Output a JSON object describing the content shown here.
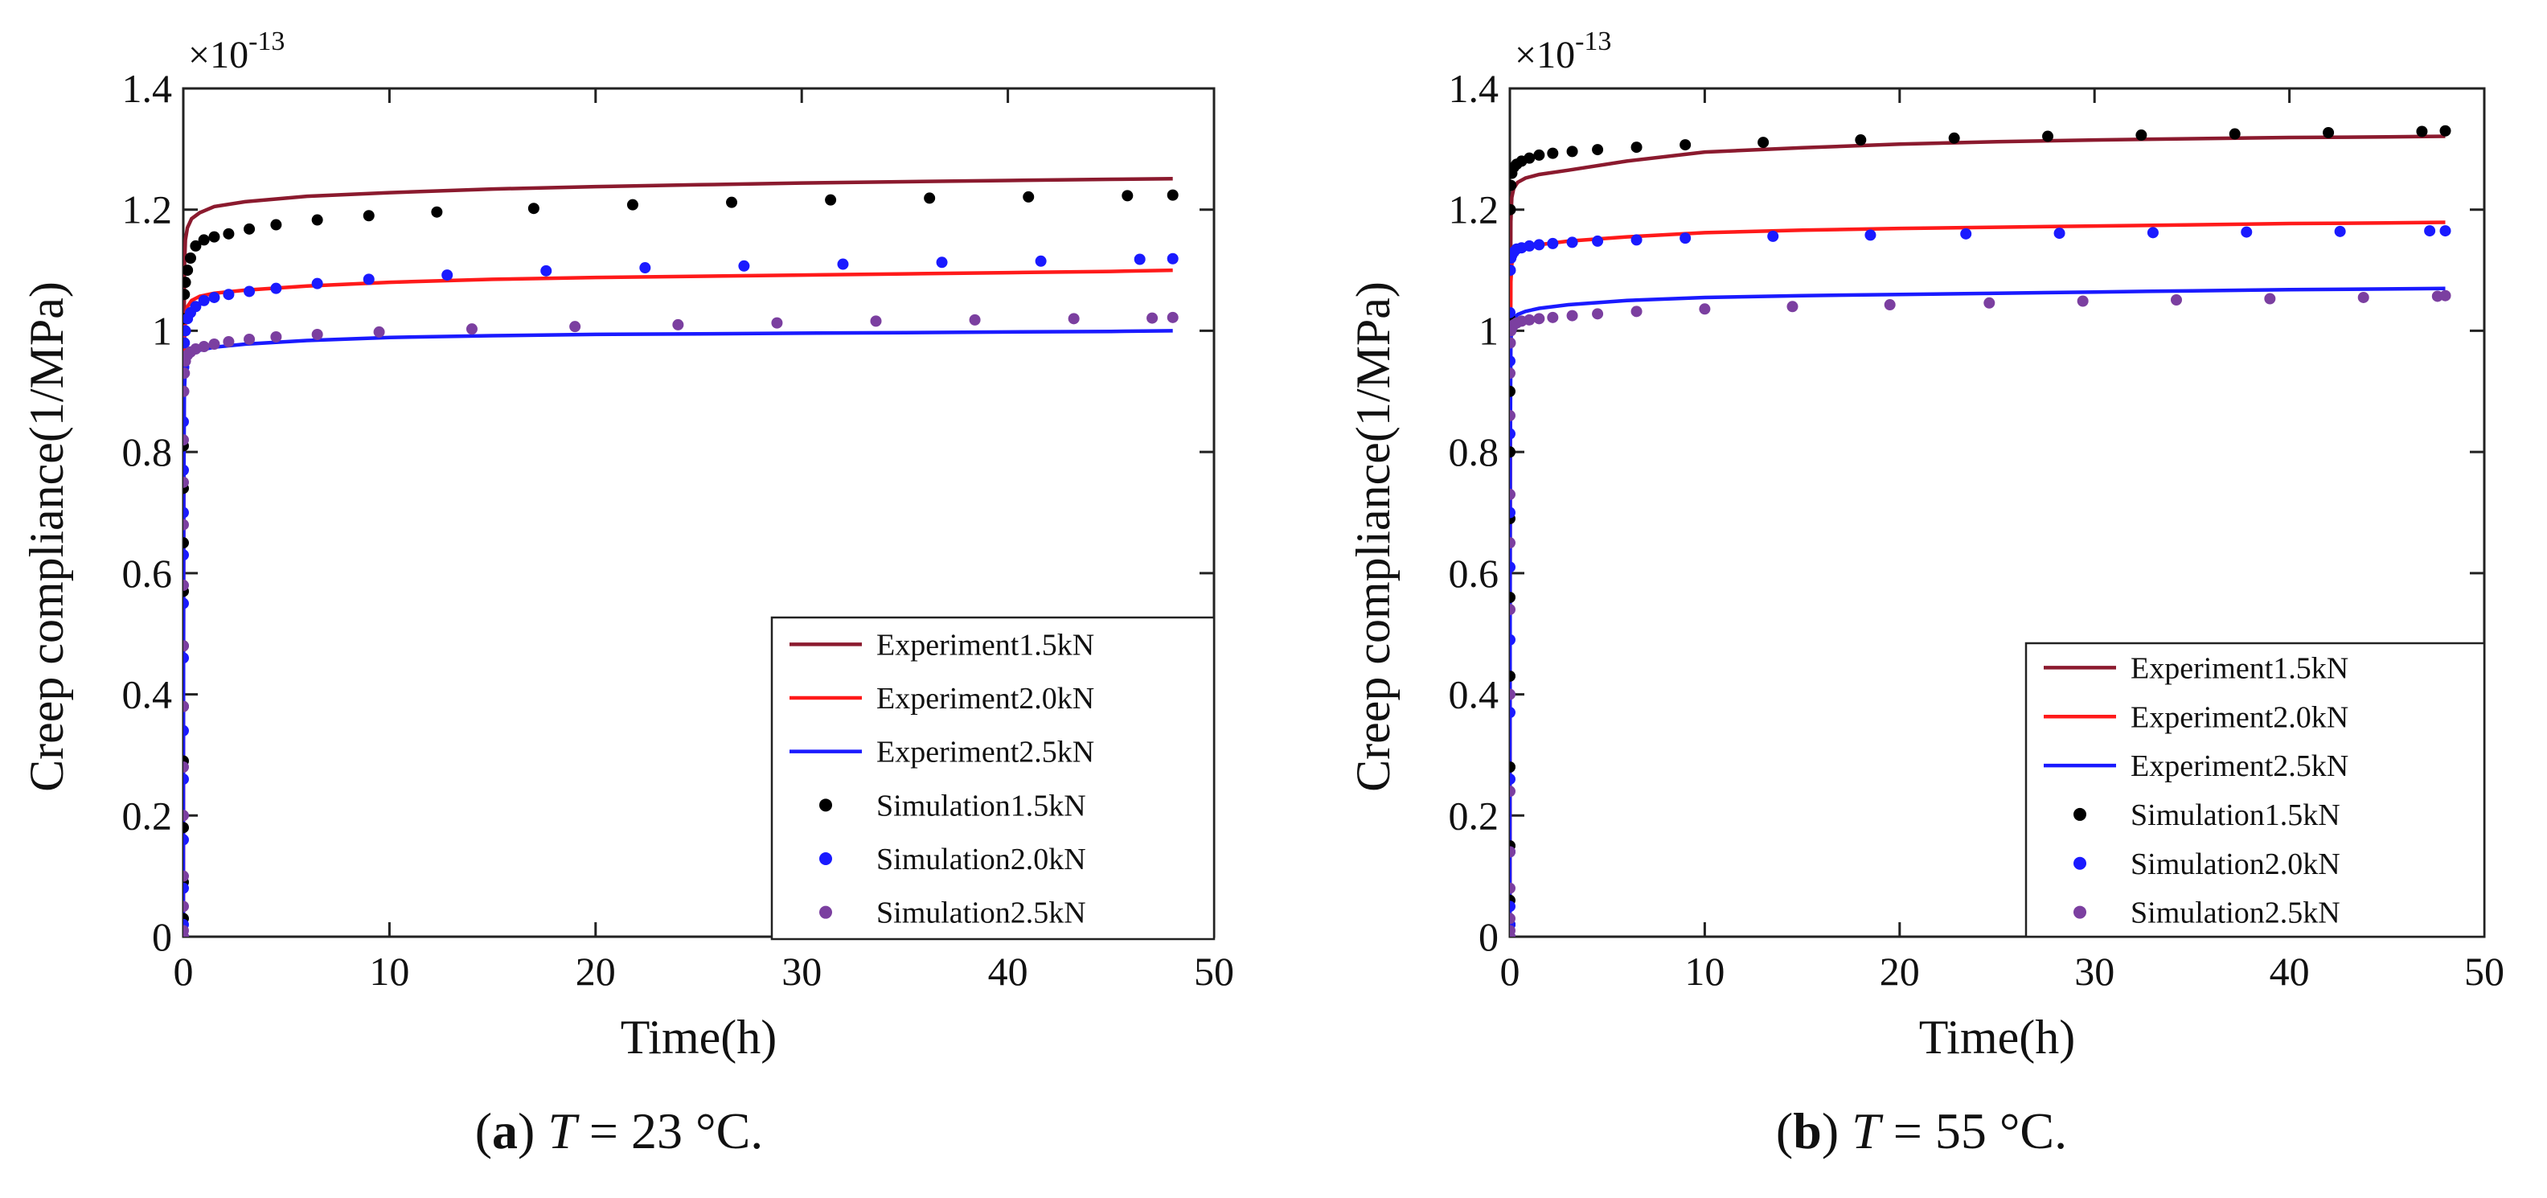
{
  "chart_data": [
    {
      "type": "line",
      "panel": "a",
      "caption": {
        "letter": "a",
        "variable": "T",
        "rest": " = 23 °C."
      },
      "xlabel": "Time(h)",
      "ylabel": "Creep compliance(1/MPa)",
      "multiplier": {
        "base": "×10",
        "exponent": "-13"
      },
      "xlim": [
        0,
        50
      ],
      "ylim": [
        0,
        1.4
      ],
      "xticks": [
        0,
        10,
        20,
        30,
        40,
        50
      ],
      "yticks": [
        0,
        0.2,
        0.4,
        0.6,
        0.8,
        1,
        1.2,
        1.4
      ],
      "legend_position": "lower-right",
      "series": [
        {
          "name": "Experiment1.5kN",
          "kind": "line",
          "color": "#8b1a2e",
          "x": [
            0,
            0.005,
            0.02,
            0.05,
            0.1,
            0.2,
            0.4,
            0.8,
            1.5,
            3,
            6,
            10,
            15,
            20,
            25,
            30,
            35,
            40,
            45,
            48
          ],
          "y": [
            0,
            0.3,
            0.8,
            1.1,
            1.15,
            1.17,
            1.185,
            1.195,
            1.205,
            1.213,
            1.222,
            1.228,
            1.234,
            1.238,
            1.241,
            1.244,
            1.246,
            1.248,
            1.25,
            1.251
          ]
        },
        {
          "name": "Experiment2.0kN",
          "kind": "line",
          "color": "#ff1a1a",
          "x": [
            0,
            0.005,
            0.02,
            0.05,
            0.1,
            0.2,
            0.4,
            0.8,
            1.5,
            3,
            6,
            10,
            15,
            20,
            25,
            30,
            35,
            40,
            45,
            48
          ],
          "y": [
            0,
            0.28,
            0.75,
            0.98,
            1.02,
            1.04,
            1.05,
            1.057,
            1.062,
            1.067,
            1.074,
            1.08,
            1.085,
            1.088,
            1.09,
            1.092,
            1.094,
            1.096,
            1.098,
            1.1
          ]
        },
        {
          "name": "Experiment2.5kN",
          "kind": "line",
          "color": "#1a1aff",
          "x": [
            0,
            0.005,
            0.02,
            0.05,
            0.1,
            0.2,
            0.4,
            0.8,
            1.5,
            3,
            6,
            10,
            15,
            20,
            25,
            30,
            35,
            40,
            45,
            48
          ],
          "y": [
            0,
            0.25,
            0.7,
            0.9,
            0.94,
            0.955,
            0.962,
            0.968,
            0.973,
            0.978,
            0.984,
            0.989,
            0.992,
            0.994,
            0.995,
            0.996,
            0.997,
            0.998,
            0.999,
            1.0
          ]
        },
        {
          "name": "Simulation1.5kN",
          "kind": "scatter",
          "color": "#000000",
          "x": [
            0,
            0,
            0,
            0,
            0,
            0,
            0,
            0,
            0,
            0,
            0,
            0,
            0.02,
            0.05,
            0.1,
            0.2,
            0.35,
            0.6,
            1,
            1.5,
            2.2,
            3.2,
            4.5,
            6.5,
            9,
            12.3,
            17,
            21.8,
            26.6,
            31.4,
            36.2,
            41,
            45.8,
            48
          ],
          "y": [
            0,
            0.03,
            0.09,
            0.18,
            0.29,
            0.38,
            0.48,
            0.57,
            0.65,
            0.74,
            0.81,
            0.9,
            1.02,
            1.06,
            1.08,
            1.1,
            1.12,
            1.14,
            1.15,
            1.155,
            1.16,
            1.168,
            1.175,
            1.183,
            1.19,
            1.196,
            1.202,
            1.208,
            1.212,
            1.216,
            1.219,
            1.221,
            1.223,
            1.224
          ]
        },
        {
          "name": "Simulation2.0kN",
          "kind": "scatter",
          "color": "#1a1aff",
          "x": [
            0,
            0,
            0,
            0,
            0,
            0,
            0,
            0,
            0,
            0,
            0,
            0,
            0.02,
            0.05,
            0.1,
            0.2,
            0.35,
            0.6,
            1,
            1.5,
            2.2,
            3.2,
            4.5,
            6.5,
            9,
            12.8,
            17.6,
            22.4,
            27.2,
            32,
            36.8,
            41.6,
            46.4,
            48
          ],
          "y": [
            0,
            0.02,
            0.08,
            0.16,
            0.26,
            0.34,
            0.46,
            0.55,
            0.63,
            0.7,
            0.77,
            0.85,
            0.94,
            0.98,
            1.0,
            1.02,
            1.03,
            1.04,
            1.05,
            1.055,
            1.06,
            1.065,
            1.07,
            1.078,
            1.085,
            1.092,
            1.099,
            1.104,
            1.107,
            1.11,
            1.113,
            1.115,
            1.118,
            1.119
          ]
        },
        {
          "name": "Simulation2.5kN",
          "kind": "scatter",
          "color": "#7b3fa0",
          "x": [
            0,
            0,
            0,
            0,
            0,
            0,
            0,
            0,
            0,
            0,
            0,
            0,
            0.02,
            0.05,
            0.1,
            0.2,
            0.35,
            0.6,
            1,
            1.5,
            2.2,
            3.2,
            4.5,
            6.5,
            9.5,
            14,
            19,
            24,
            28.8,
            33.6,
            38.4,
            43.2,
            47,
            48
          ],
          "y": [
            0,
            0.01,
            0.05,
            0.1,
            0.2,
            0.28,
            0.38,
            0.48,
            0.58,
            0.68,
            0.75,
            0.82,
            0.9,
            0.93,
            0.95,
            0.96,
            0.965,
            0.97,
            0.974,
            0.978,
            0.982,
            0.986,
            0.99,
            0.994,
            0.998,
            1.003,
            1.007,
            1.01,
            1.013,
            1.016,
            1.018,
            1.02,
            1.021,
            1.022
          ]
        }
      ]
    },
    {
      "type": "line",
      "panel": "b",
      "caption": {
        "letter": "b",
        "variable": "T",
        "rest": " = 55 °C."
      },
      "xlabel": "Time(h)",
      "ylabel": "Creep compliance(1/MPa)",
      "multiplier": {
        "base": "×10",
        "exponent": "-13"
      },
      "xlim": [
        0,
        50
      ],
      "ylim": [
        0,
        1.4
      ],
      "xticks": [
        0,
        10,
        20,
        30,
        40,
        50
      ],
      "yticks": [
        0,
        0.2,
        0.4,
        0.6,
        0.8,
        1,
        1.2,
        1.4
      ],
      "legend_position": "lower-right",
      "series": [
        {
          "name": "Experiment1.5kN",
          "kind": "line",
          "color": "#8b1a2e",
          "x": [
            0,
            0.005,
            0.02,
            0.05,
            0.1,
            0.2,
            0.4,
            0.8,
            1.5,
            3,
            6,
            10,
            15,
            20,
            25,
            30,
            35,
            40,
            45,
            48
          ],
          "y": [
            0,
            0.35,
            0.9,
            1.18,
            1.22,
            1.235,
            1.245,
            1.252,
            1.258,
            1.265,
            1.28,
            1.295,
            1.302,
            1.308,
            1.312,
            1.315,
            1.317,
            1.319,
            1.32,
            1.321
          ]
        },
        {
          "name": "Experiment2.0kN",
          "kind": "line",
          "color": "#ff1a1a",
          "x": [
            0,
            0.005,
            0.02,
            0.05,
            0.1,
            0.2,
            0.4,
            0.8,
            1.5,
            3,
            6,
            10,
            15,
            20,
            25,
            30,
            35,
            40,
            45,
            48
          ],
          "y": [
            0,
            0.32,
            0.85,
            1.08,
            1.11,
            1.125,
            1.132,
            1.137,
            1.142,
            1.148,
            1.155,
            1.162,
            1.166,
            1.169,
            1.171,
            1.173,
            1.175,
            1.177,
            1.178,
            1.179
          ]
        },
        {
          "name": "Experiment2.5kN",
          "kind": "line",
          "color": "#1a1aff",
          "x": [
            0,
            0.005,
            0.02,
            0.05,
            0.1,
            0.2,
            0.4,
            0.8,
            1.5,
            3,
            6,
            10,
            15,
            20,
            25,
            30,
            35,
            40,
            45,
            48
          ],
          "y": [
            0,
            0.3,
            0.8,
            0.98,
            1.01,
            1.02,
            1.027,
            1.032,
            1.037,
            1.043,
            1.05,
            1.055,
            1.058,
            1.06,
            1.062,
            1.064,
            1.066,
            1.068,
            1.069,
            1.07
          ]
        },
        {
          "name": "Simulation1.5kN",
          "kind": "scatter",
          "color": "#000000",
          "x": [
            0,
            0,
            0,
            0,
            0,
            0,
            0,
            0,
            0,
            0,
            0,
            0,
            0.02,
            0.05,
            0.1,
            0.2,
            0.35,
            0.6,
            1,
            1.5,
            2.2,
            3.2,
            4.5,
            6.5,
            9,
            13,
            18,
            22.8,
            27.6,
            32.4,
            37.2,
            42,
            46.8,
            48
          ],
          "y": [
            0,
            0.02,
            0.06,
            0.15,
            0.28,
            0.43,
            0.56,
            0.69,
            0.8,
            0.9,
            1.02,
            1.1,
            1.2,
            1.24,
            1.26,
            1.27,
            1.275,
            1.28,
            1.285,
            1.29,
            1.293,
            1.296,
            1.299,
            1.303,
            1.307,
            1.311,
            1.315,
            1.318,
            1.321,
            1.323,
            1.325,
            1.327,
            1.329,
            1.33
          ]
        },
        {
          "name": "Simulation2.0kN",
          "kind": "scatter",
          "color": "#1a1aff",
          "x": [
            0,
            0,
            0,
            0,
            0,
            0,
            0,
            0,
            0,
            0,
            0,
            0,
            0.02,
            0.05,
            0.1,
            0.2,
            0.35,
            0.6,
            1,
            1.5,
            2.2,
            3.2,
            4.5,
            6.5,
            9,
            13.5,
            18.5,
            23.4,
            28.2,
            33,
            37.8,
            42.6,
            47.2,
            48
          ],
          "y": [
            0,
            0.02,
            0.05,
            0.14,
            0.26,
            0.37,
            0.49,
            0.61,
            0.7,
            0.83,
            0.95,
            1.03,
            1.1,
            1.12,
            1.125,
            1.13,
            1.135,
            1.137,
            1.14,
            1.142,
            1.144,
            1.146,
            1.148,
            1.15,
            1.153,
            1.156,
            1.158,
            1.16,
            1.161,
            1.162,
            1.163,
            1.164,
            1.165,
            1.165
          ]
        },
        {
          "name": "Simulation2.5kN",
          "kind": "scatter",
          "color": "#7b3fa0",
          "x": [
            0,
            0,
            0,
            0,
            0,
            0,
            0,
            0,
            0,
            0,
            0,
            0,
            0.02,
            0.05,
            0.1,
            0.2,
            0.35,
            0.6,
            1,
            1.5,
            2.2,
            3.2,
            4.5,
            6.5,
            10,
            14.5,
            19.5,
            24.6,
            29.4,
            34.2,
            39,
            43.8,
            47.6,
            48
          ],
          "y": [
            0,
            0.01,
            0.03,
            0.08,
            0.14,
            0.24,
            0.4,
            0.54,
            0.65,
            0.73,
            0.86,
            0.93,
            0.98,
            1.0,
            1.005,
            1.01,
            1.013,
            1.016,
            1.018,
            1.02,
            1.022,
            1.025,
            1.028,
            1.032,
            1.036,
            1.04,
            1.043,
            1.046,
            1.049,
            1.051,
            1.053,
            1.055,
            1.057,
            1.058
          ]
        }
      ]
    }
  ]
}
